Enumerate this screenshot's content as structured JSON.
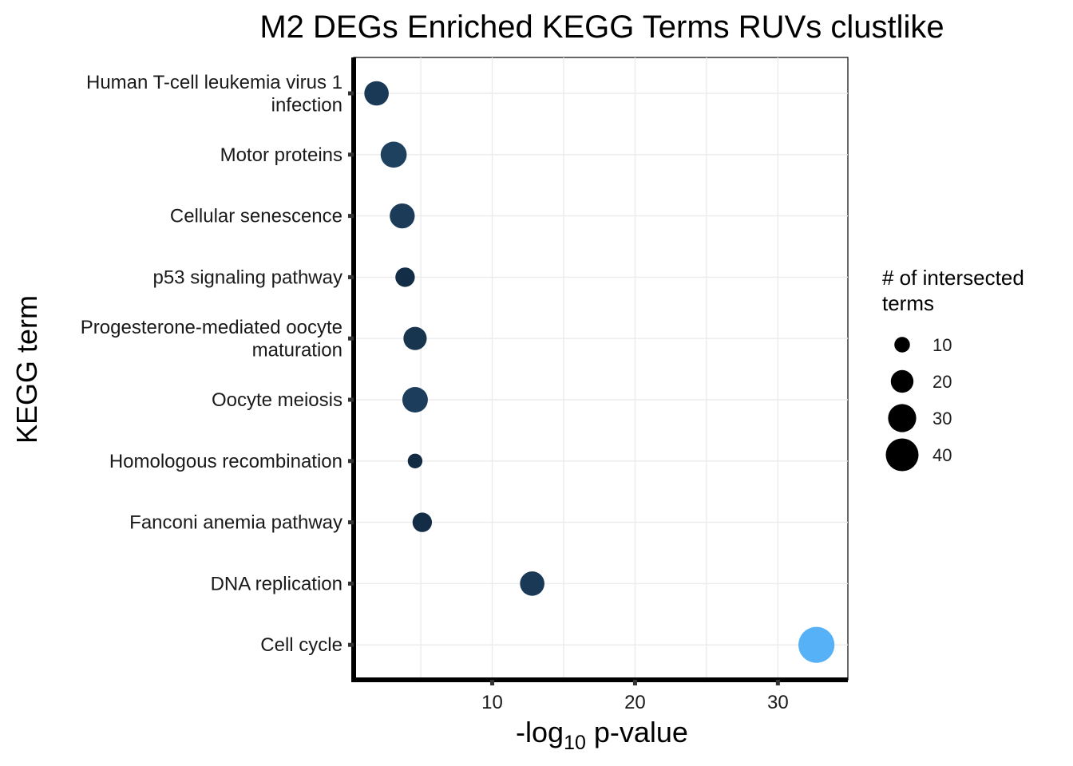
{
  "chart_data": {
    "type": "scatter",
    "title": "M2 DEGs Enriched KEGG Terms RUVs clustlike",
    "xlabel": {
      "prefix": "-log",
      "sub": "10",
      "suffix": " p-value"
    },
    "ylabel": "KEGG term",
    "xlim": [
      0.3,
      34.9
    ],
    "xticks": [
      10,
      20,
      30
    ],
    "grid": true,
    "categories_top_to_bottom": [
      [
        "Human T-cell leukemia virus 1",
        "infection"
      ],
      [
        "Motor proteins"
      ],
      [
        "Cellular senescence"
      ],
      [
        "p53 signaling pathway"
      ],
      [
        "Progesterone-mediated oocyte",
        "maturation"
      ],
      [
        "Oocyte meiosis"
      ],
      [
        "Homologous recombination"
      ],
      [
        "Fanconi anemia pathway"
      ],
      [
        "DNA replication"
      ],
      [
        "Cell cycle"
      ]
    ],
    "points": [
      {
        "term": "Human T-cell leukemia virus 1 infection",
        "x": 1.9,
        "count": 23
      },
      {
        "term": "Motor proteins",
        "x": 3.1,
        "count": 26
      },
      {
        "term": "Cellular senescence",
        "x": 3.7,
        "count": 24
      },
      {
        "term": "p53 signaling pathway",
        "x": 3.9,
        "count": 15
      },
      {
        "term": "Progesterone-mediated oocyte maturation",
        "x": 4.6,
        "count": 21
      },
      {
        "term": "Oocyte meiosis",
        "x": 4.6,
        "count": 25
      },
      {
        "term": "Homologous recombination",
        "x": 4.6,
        "count": 9
      },
      {
        "term": "Fanconi anemia pathway",
        "x": 5.1,
        "count": 15
      },
      {
        "term": "DNA replication",
        "x": 12.8,
        "count": 23
      },
      {
        "term": "Cell cycle",
        "x": 32.7,
        "count": 48
      }
    ],
    "color": {
      "low": "#132B43",
      "high": "#56B1F7"
    },
    "size_legend": {
      "title_lines": [
        "# of intersected",
        " terms"
      ],
      "entries": [
        10,
        20,
        30,
        40
      ]
    }
  }
}
